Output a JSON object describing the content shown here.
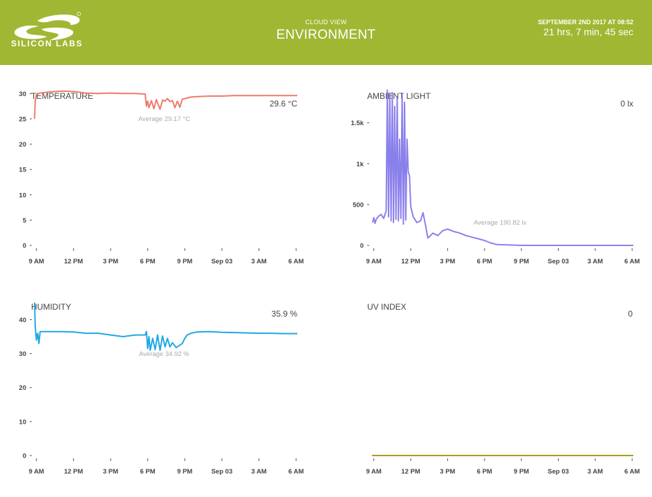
{
  "header": {
    "logo_text": "SILICON LABS",
    "subtitle": "CLOUD VIEW",
    "title": "ENVIRONMENT",
    "date": "SEPTEMBER 2ND 2017 AT 08:52",
    "elapsed": "21 hrs, 7 min, 45 sec",
    "color": "#a0b733"
  },
  "chart_data": [
    {
      "type": "line",
      "title": "TEMPERATURE",
      "current_value": "29.6 °C",
      "average_label": "Average 29.17 °C",
      "color": "#f07a6a",
      "x_ticks": [
        "9 AM",
        "12 PM",
        "3 PM",
        "6 PM",
        "9 PM",
        "Sep 03",
        "3 AM",
        "6 AM"
      ],
      "y_ticks": [
        "0",
        "5",
        "10",
        "15",
        "20",
        "25",
        "30"
      ],
      "y_tick_values": [
        0,
        5,
        10,
        15,
        20,
        25,
        30
      ],
      "xlim": [
        8.85,
        30.1
      ],
      "ylim": [
        0,
        31
      ],
      "series": [
        {
          "x": [
            8.85,
            8.9,
            9.0,
            9.3,
            10,
            11,
            12,
            13,
            14,
            15,
            16,
            17,
            17.8,
            17.9,
            18.0,
            18.1,
            18.3,
            18.5,
            18.7,
            19.0,
            19.2,
            19.4,
            19.6,
            19.8,
            20.0,
            20.2,
            20.4,
            20.6,
            20.8,
            21.0,
            21.5,
            22,
            23,
            24,
            25,
            26,
            27,
            28,
            29,
            30.1
          ],
          "y": [
            25,
            28.5,
            29.8,
            30.1,
            30.3,
            30.5,
            30.4,
            30.1,
            30.0,
            30.1,
            30.0,
            30.0,
            29.9,
            27.5,
            28.5,
            27.2,
            28.6,
            27.0,
            28.8,
            26.9,
            28.7,
            28.5,
            29.0,
            28.4,
            28.6,
            27.2,
            28.5,
            27.3,
            28.9,
            29.0,
            29.3,
            29.4,
            29.5,
            29.5,
            29.6,
            29.6,
            29.6,
            29.6,
            29.6,
            29.6
          ]
        }
      ]
    },
    {
      "type": "line",
      "title": "AMBIENT LIGHT",
      "current_value": "0 lx",
      "average_label": "Average 190.82 lx",
      "color": "#8a80ec",
      "x_ticks": [
        "9 AM",
        "12 PM",
        "3 PM",
        "6 PM",
        "9 PM",
        "Sep 03",
        "3 AM",
        "6 AM"
      ],
      "y_ticks": [
        "0",
        "500",
        "1k",
        "1.5k"
      ],
      "y_tick_values": [
        0,
        500,
        1000,
        1500
      ],
      "xlim": [
        8.85,
        30.1
      ],
      "ylim": [
        0,
        1920
      ],
      "series": [
        {
          "x": [
            8.9,
            9.0,
            9.1,
            9.2,
            9.4,
            9.6,
            9.8,
            10.0,
            10.1,
            10.2,
            10.3,
            10.4,
            10.5,
            10.6,
            10.7,
            10.8,
            10.9,
            11.0,
            11.1,
            11.2,
            11.3,
            11.4,
            11.5,
            11.6,
            11.7,
            11.8,
            11.9,
            12.0,
            12.2,
            12.5,
            12.8,
            13.0,
            13.2,
            13.4,
            13.8,
            14.2,
            14.6,
            15.0,
            15.5,
            16.0,
            16.5,
            17.0,
            17.5,
            18.0,
            18.5,
            19.0,
            20.0,
            21.0,
            22,
            24,
            26,
            28,
            30.1
          ],
          "y": [
            280,
            340,
            270,
            320,
            360,
            380,
            330,
            420,
            1900,
            350,
            1850,
            300,
            1870,
            280,
            1700,
            320,
            1820,
            300,
            1300,
            330,
            1850,
            260,
            1750,
            310,
            1300,
            900,
            850,
            480,
            350,
            280,
            300,
            400,
            250,
            90,
            150,
            120,
            180,
            200,
            170,
            150,
            120,
            100,
            80,
            60,
            30,
            10,
            5,
            0,
            0,
            0,
            0,
            0,
            0
          ]
        }
      ]
    },
    {
      "type": "line",
      "title": "HUMIDITY",
      "current_value": "35.9 %",
      "average_label": "Average 34.92 %",
      "color": "#1fa8e2",
      "x_ticks": [
        "9 AM",
        "12 PM",
        "3 PM",
        "6 PM",
        "9 PM",
        "Sep 03",
        "3 AM",
        "6 AM"
      ],
      "y_ticks": [
        "0",
        "10",
        "20",
        "30",
        "40"
      ],
      "y_tick_values": [
        0,
        10,
        20,
        30,
        40
      ],
      "xlim": [
        8.85,
        30.1
      ],
      "ylim": [
        0,
        46
      ],
      "series": [
        {
          "x": [
            8.85,
            8.9,
            9.0,
            9.1,
            9.2,
            9.3,
            9.5,
            10,
            11,
            12,
            13,
            14,
            15,
            16,
            17,
            17.8,
            17.9,
            18.0,
            18.1,
            18.2,
            18.4,
            18.6,
            18.8,
            19.0,
            19.2,
            19.4,
            19.6,
            19.8,
            20.0,
            20.3,
            20.6,
            20.8,
            21.0,
            21.2,
            21.5,
            22,
            23,
            24,
            25,
            26,
            27,
            28,
            29,
            30.1
          ],
          "y": [
            45,
            38,
            34,
            36,
            33,
            36.5,
            36.5,
            36.5,
            36.5,
            36.4,
            36.0,
            36.0,
            35.5,
            35.0,
            35.5,
            35.5,
            36.5,
            31.5,
            35,
            31,
            34.5,
            31.2,
            35.5,
            31.0,
            35.2,
            32.0,
            34.5,
            32.0,
            33.2,
            31.8,
            32.5,
            33.0,
            34.5,
            35.5,
            36.0,
            36.4,
            36.5,
            36.3,
            36.2,
            36.1,
            36.0,
            36.0,
            35.9,
            35.9
          ]
        }
      ]
    },
    {
      "type": "line",
      "title": "UV INDEX",
      "current_value": "0",
      "average_label": "",
      "color": "#a0a020",
      "x_ticks": [
        "9 AM",
        "12 PM",
        "3 PM",
        "6 PM",
        "9 PM",
        "Sep 03",
        "3 AM",
        "6 AM"
      ],
      "y_ticks": [],
      "y_tick_values": [],
      "xlim": [
        8.85,
        30.1
      ],
      "ylim": [
        0,
        46
      ],
      "series": [
        {
          "x": [
            8.85,
            30.1
          ],
          "y": [
            0,
            0
          ]
        }
      ]
    }
  ]
}
